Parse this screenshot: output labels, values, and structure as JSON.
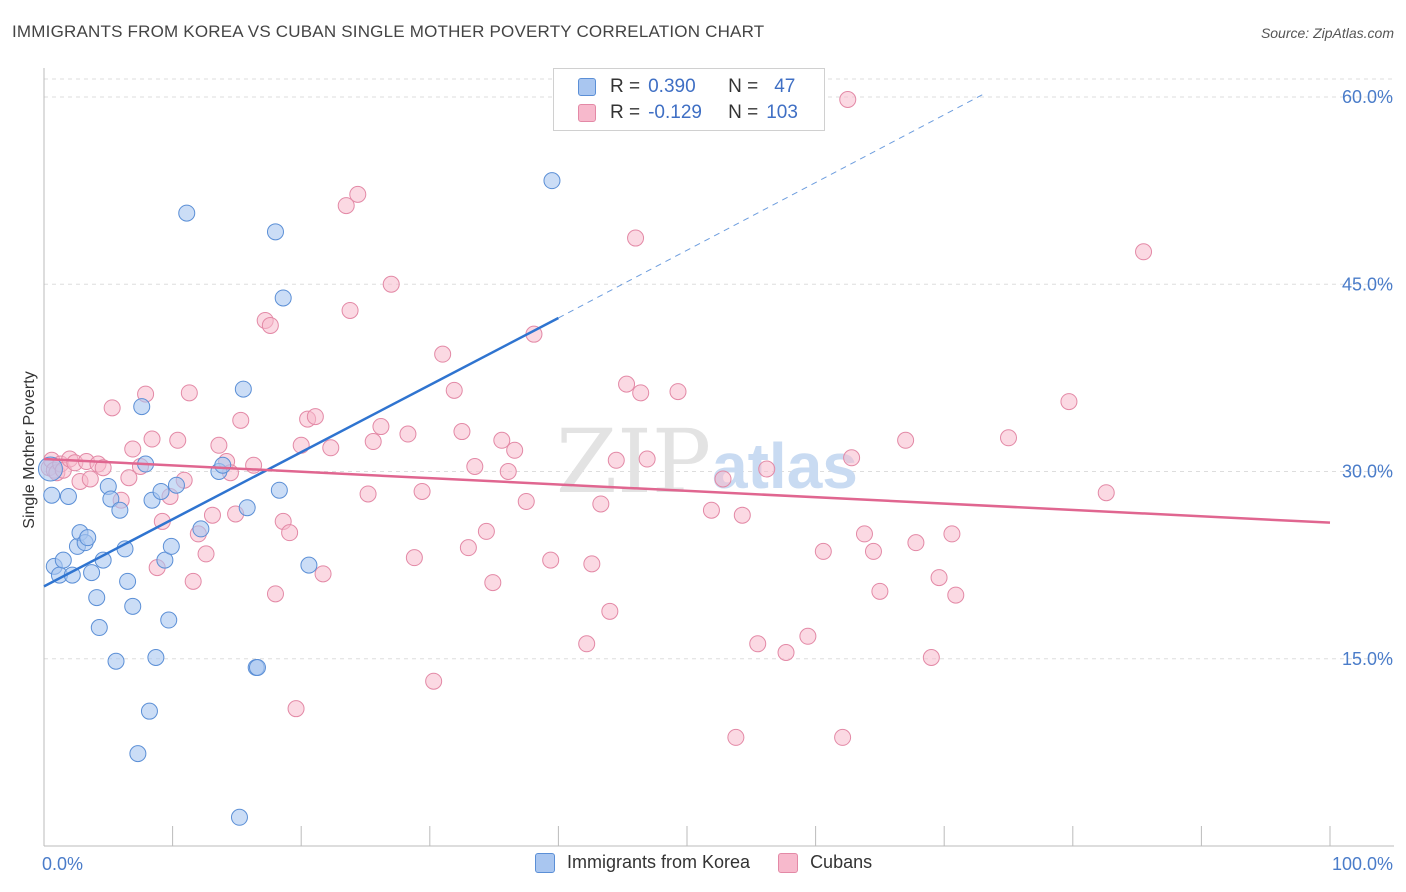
{
  "header": {
    "title": "IMMIGRANTS FROM KOREA VS CUBAN SINGLE MOTHER POVERTY CORRELATION CHART",
    "source": "Source: ZipAtlas.com"
  },
  "legend": {
    "rows": [
      {
        "r_label": "R =",
        "r_value": "0.390",
        "n_label": "N =",
        "n_value": "47"
      },
      {
        "r_label": "R =",
        "r_value": "-0.129",
        "n_label": "N =",
        "n_value": "103"
      }
    ]
  },
  "watermark": {
    "zip": "ZIP",
    "atlas": "atlas"
  },
  "colors": {
    "korea_fill": "#a9c6f0",
    "korea_stroke": "#5b8fd6",
    "korea_line": "#2f74d0",
    "cuba_fill": "#f7b9cc",
    "cuba_stroke": "#e389a6",
    "cuba_line": "#e06690",
    "grid": "#dddddd",
    "tick_label": "#4a7cc9"
  },
  "chart_data": {
    "type": "scatter",
    "title": "IMMIGRANTS FROM KOREA VS CUBAN SINGLE MOTHER POVERTY CORRELATION CHART",
    "xlabel": "",
    "ylabel": "Single Mother Poverty",
    "xlim": [
      0,
      100
    ],
    "ylim": [
      0,
      61.5
    ],
    "x_ticks": [
      "0.0%",
      "100.0%"
    ],
    "y_ticks": [
      {
        "value": 15,
        "label": "15.0%"
      },
      {
        "value": 30,
        "label": "30.0%"
      },
      {
        "value": 45,
        "label": "45.0%"
      },
      {
        "value": 60,
        "label": "60.0%"
      }
    ],
    "series": [
      {
        "name": "Immigrants from Korea",
        "color": "#a9c6f0",
        "points": [
          [
            0.6,
            28.1
          ],
          [
            0.8,
            22.4
          ],
          [
            1.2,
            21.7
          ],
          [
            1.5,
            22.9
          ],
          [
            1.9,
            28.0
          ],
          [
            2.2,
            21.7
          ],
          [
            2.6,
            24.0
          ],
          [
            2.8,
            25.1
          ],
          [
            3.2,
            24.3
          ],
          [
            3.4,
            24.7
          ],
          [
            3.7,
            21.9
          ],
          [
            4.1,
            19.9
          ],
          [
            4.3,
            17.5
          ],
          [
            4.6,
            22.9
          ],
          [
            5.0,
            28.8
          ],
          [
            5.2,
            27.8
          ],
          [
            5.6,
            14.8
          ],
          [
            5.9,
            26.9
          ],
          [
            6.3,
            23.8
          ],
          [
            6.5,
            21.2
          ],
          [
            6.9,
            19.2
          ],
          [
            7.3,
            7.4
          ],
          [
            7.6,
            35.2
          ],
          [
            7.9,
            30.6
          ],
          [
            8.2,
            10.8
          ],
          [
            8.4,
            27.7
          ],
          [
            8.7,
            15.1
          ],
          [
            9.1,
            28.4
          ],
          [
            9.4,
            22.9
          ],
          [
            9.7,
            18.1
          ],
          [
            9.9,
            24.0
          ],
          [
            10.3,
            28.9
          ],
          [
            11.1,
            50.7
          ],
          [
            12.2,
            25.4
          ],
          [
            13.6,
            30.0
          ],
          [
            13.9,
            30.5
          ],
          [
            15.2,
            2.3
          ],
          [
            15.5,
            36.6
          ],
          [
            15.8,
            27.1
          ],
          [
            16.5,
            14.3
          ],
          [
            16.6,
            14.3
          ],
          [
            18.0,
            49.2
          ],
          [
            18.3,
            28.5
          ],
          [
            18.6,
            43.9
          ],
          [
            20.6,
            22.5
          ],
          [
            39.5,
            53.3
          ],
          [
            0.5,
            30.2
          ]
        ]
      },
      {
        "name": "Cubans",
        "color": "#f7b9cc",
        "points": [
          [
            0.4,
            30.3
          ],
          [
            0.6,
            30.9
          ],
          [
            0.8,
            30.1
          ],
          [
            1.0,
            29.9
          ],
          [
            1.3,
            30.6
          ],
          [
            1.5,
            30.1
          ],
          [
            2.0,
            31.0
          ],
          [
            2.4,
            30.7
          ],
          [
            2.8,
            29.2
          ],
          [
            3.3,
            30.8
          ],
          [
            3.6,
            29.4
          ],
          [
            4.2,
            30.6
          ],
          [
            4.6,
            30.3
          ],
          [
            5.3,
            35.1
          ],
          [
            6.0,
            27.7
          ],
          [
            6.6,
            29.5
          ],
          [
            6.9,
            31.8
          ],
          [
            7.5,
            30.4
          ],
          [
            7.9,
            36.2
          ],
          [
            8.4,
            32.6
          ],
          [
            8.8,
            22.3
          ],
          [
            9.2,
            26.0
          ],
          [
            9.8,
            28.0
          ],
          [
            10.4,
            32.5
          ],
          [
            10.9,
            29.3
          ],
          [
            11.3,
            36.3
          ],
          [
            11.6,
            21.2
          ],
          [
            12.0,
            25.0
          ],
          [
            12.6,
            23.4
          ],
          [
            13.1,
            26.5
          ],
          [
            13.6,
            32.1
          ],
          [
            14.2,
            30.8
          ],
          [
            14.5,
            29.9
          ],
          [
            14.9,
            26.6
          ],
          [
            15.3,
            34.1
          ],
          [
            16.3,
            30.5
          ],
          [
            17.2,
            42.1
          ],
          [
            17.6,
            41.7
          ],
          [
            18.0,
            20.2
          ],
          [
            18.6,
            26.0
          ],
          [
            19.1,
            25.1
          ],
          [
            19.6,
            11.0
          ],
          [
            20.0,
            32.1
          ],
          [
            20.5,
            34.2
          ],
          [
            21.1,
            34.4
          ],
          [
            21.7,
            21.8
          ],
          [
            22.3,
            31.9
          ],
          [
            23.5,
            51.3
          ],
          [
            23.8,
            42.9
          ],
          [
            24.4,
            52.2
          ],
          [
            25.2,
            28.2
          ],
          [
            25.6,
            32.4
          ],
          [
            26.2,
            33.6
          ],
          [
            27.0,
            45.0
          ],
          [
            28.3,
            33.0
          ],
          [
            28.8,
            23.1
          ],
          [
            29.4,
            28.4
          ],
          [
            30.3,
            13.2
          ],
          [
            31.0,
            39.4
          ],
          [
            31.9,
            36.5
          ],
          [
            32.5,
            33.2
          ],
          [
            33.0,
            23.9
          ],
          [
            33.5,
            30.4
          ],
          [
            34.4,
            25.2
          ],
          [
            34.9,
            21.1
          ],
          [
            35.6,
            32.5
          ],
          [
            36.1,
            30.0
          ],
          [
            36.6,
            31.7
          ],
          [
            37.5,
            27.6
          ],
          [
            38.1,
            41.0
          ],
          [
            39.4,
            22.9
          ],
          [
            42.2,
            16.2
          ],
          [
            42.6,
            22.6
          ],
          [
            43.3,
            27.4
          ],
          [
            44.0,
            18.8
          ],
          [
            44.5,
            30.9
          ],
          [
            45.3,
            37.0
          ],
          [
            46.0,
            48.7
          ],
          [
            46.4,
            36.3
          ],
          [
            46.9,
            31.0
          ],
          [
            49.3,
            36.4
          ],
          [
            51.9,
            26.9
          ],
          [
            52.8,
            29.4
          ],
          [
            53.8,
            8.7
          ],
          [
            54.3,
            26.5
          ],
          [
            55.5,
            16.2
          ],
          [
            56.2,
            30.2
          ],
          [
            57.7,
            15.5
          ],
          [
            59.4,
            16.8
          ],
          [
            60.6,
            23.6
          ],
          [
            62.1,
            8.7
          ],
          [
            62.5,
            59.8
          ],
          [
            62.8,
            31.1
          ],
          [
            63.8,
            25.0
          ],
          [
            64.5,
            23.6
          ],
          [
            65.0,
            20.4
          ],
          [
            67.0,
            32.5
          ],
          [
            67.8,
            24.3
          ],
          [
            69.0,
            15.1
          ],
          [
            69.6,
            21.5
          ],
          [
            70.6,
            25.0
          ],
          [
            70.9,
            20.1
          ],
          [
            75.0,
            32.7
          ]
        ]
      },
      {
        "name": "Cubans (outliers)",
        "color": "#f7b9cc",
        "points": [
          [
            79.7,
            35.6
          ],
          [
            82.6,
            28.3
          ],
          [
            85.5,
            47.6
          ]
        ]
      }
    ],
    "trendlines": [
      {
        "series": "Immigrants from Korea",
        "x": [
          0,
          40
        ],
        "y": [
          20.8,
          42.3
        ],
        "dashed_extension_to": [
          73,
          60.2
        ]
      },
      {
        "series": "Cubans",
        "x": [
          0,
          100
        ],
        "y": [
          31.0,
          25.9
        ]
      }
    ],
    "legend_position": "top-center",
    "grid": true
  },
  "bottom_legend": [
    {
      "label": "Immigrants from Korea"
    },
    {
      "label": "Cubans"
    }
  ]
}
